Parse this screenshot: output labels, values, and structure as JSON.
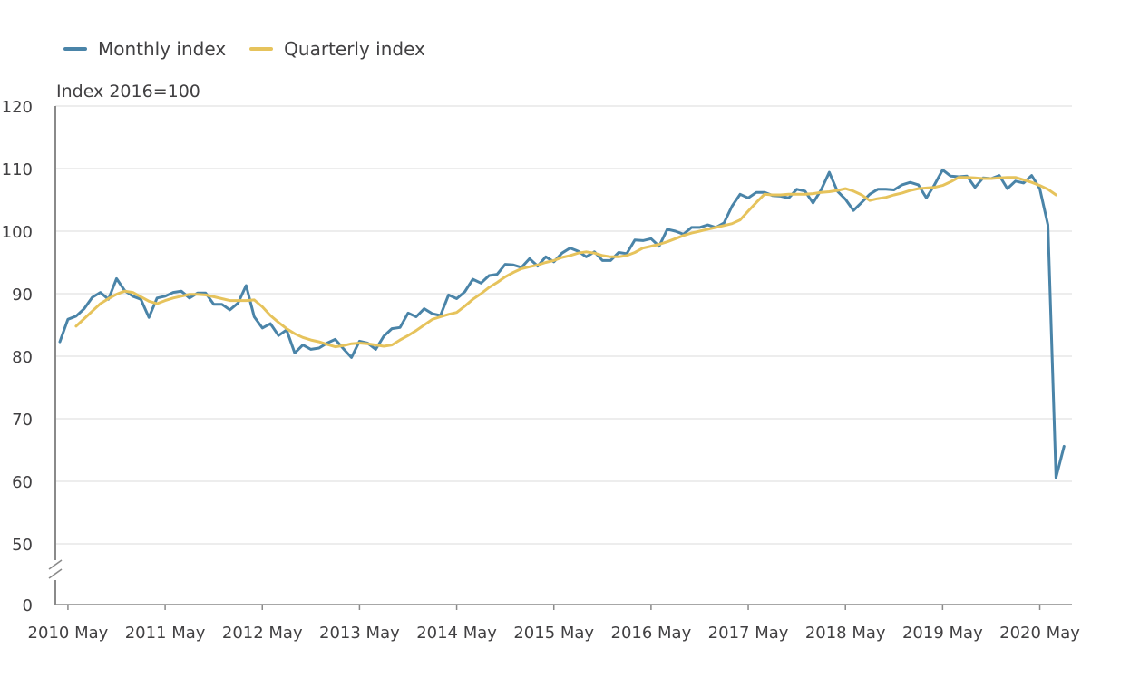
{
  "legend": {
    "monthly_label": "Monthly index",
    "quarterly_label": "Quarterly index"
  },
  "colors": {
    "monthly": "#4a84a8",
    "quarterly": "#e6c35c",
    "grid": "#e2e2e2",
    "axis": "#8a8a8a"
  },
  "chart_data": {
    "type": "line",
    "title": "",
    "ylabel": "Index 2016=100",
    "xlabel": "",
    "ylim": [
      50,
      120
    ],
    "y_ticks": [
      120,
      110,
      100,
      90,
      80,
      70,
      60,
      50,
      0
    ],
    "axis_break": "between 50 and 0",
    "grid": true,
    "legend_position": "top-left",
    "x_ticks": [
      "2010 May",
      "2011 May",
      "2012 May",
      "2013 May",
      "2014 May",
      "2015 May",
      "2016 May",
      "2017 May",
      "2018 May",
      "2019 May",
      "2020 May"
    ],
    "x_start": "2010-04",
    "series": [
      {
        "name": "Monthly index",
        "start": "2010-04",
        "values": [
          82.3,
          85.9,
          86.4,
          87.6,
          89.4,
          90.2,
          89.1,
          92.4,
          90.5,
          89.6,
          89.1,
          86.2,
          89.3,
          89.6,
          90.2,
          90.4,
          89.3,
          90.1,
          90.1,
          88.3,
          88.3,
          87.4,
          88.5,
          91.3,
          86.3,
          84.5,
          85.2,
          83.3,
          84.2,
          80.5,
          81.8,
          81.1,
          81.3,
          82.1,
          82.7,
          81.2,
          79.8,
          82.4,
          82.1,
          81.1,
          83.2,
          84.4,
          84.6,
          86.9,
          86.3,
          87.6,
          86.8,
          86.5,
          89.8,
          89.2,
          90.3,
          92.3,
          91.7,
          92.9,
          93.1,
          94.7,
          94.6,
          94.2,
          95.6,
          94.4,
          95.9,
          95.1,
          96.5,
          97.3,
          96.8,
          95.9,
          96.7,
          95.3,
          95.3,
          96.6,
          96.4,
          98.6,
          98.5,
          98.8,
          97.6,
          100.3,
          100.0,
          99.5,
          100.6,
          100.6,
          101.0,
          100.6,
          101.3,
          104.0,
          105.9,
          105.3,
          106.2,
          106.2,
          105.7,
          105.6,
          105.3,
          106.7,
          106.4,
          104.5,
          106.6,
          109.4,
          106.4,
          105.1,
          103.3,
          104.6,
          105.9,
          106.7,
          106.7,
          106.6,
          107.4,
          107.8,
          107.4,
          105.3,
          107.4,
          109.8,
          108.8,
          108.7,
          108.8,
          107.0,
          108.5,
          108.4,
          108.9,
          106.8,
          108.0,
          107.7,
          108.9,
          106.8,
          101.0,
          60.6,
          65.6
        ]
      },
      {
        "name": "Quarterly index",
        "start": "2010-06",
        "values": [
          84.8,
          86.0,
          87.2,
          88.4,
          89.2,
          89.9,
          90.4,
          90.2,
          89.5,
          88.8,
          88.4,
          88.9,
          89.3,
          89.6,
          89.9,
          89.9,
          89.8,
          89.5,
          89.2,
          88.9,
          88.9,
          88.9,
          89.0,
          87.9,
          86.5,
          85.4,
          84.4,
          83.6,
          83.0,
          82.6,
          82.3,
          81.9,
          81.5,
          81.7,
          82.0,
          82.1,
          82.0,
          81.8,
          81.6,
          81.8,
          82.6,
          83.3,
          84.1,
          85.0,
          85.9,
          86.3,
          86.7,
          87.0,
          88.0,
          89.1,
          90.0,
          91.0,
          91.8,
          92.7,
          93.4,
          94.0,
          94.3,
          94.6,
          95.0,
          95.3,
          95.8,
          96.1,
          96.5,
          96.7,
          96.5,
          96.1,
          95.9,
          95.9,
          96.1,
          96.6,
          97.3,
          97.6,
          97.9,
          98.3,
          98.8,
          99.3,
          99.7,
          100.0,
          100.3,
          100.6,
          100.9,
          101.2,
          101.8,
          103.2,
          104.6,
          105.9,
          105.8,
          105.8,
          105.9,
          105.9,
          105.9,
          106.0,
          106.2,
          106.3,
          106.5,
          106.8,
          106.4,
          105.8,
          104.9,
          105.2,
          105.4,
          105.8,
          106.1,
          106.5,
          106.8,
          106.9,
          107.0,
          107.3,
          107.9,
          108.6,
          108.6,
          108.5,
          108.4,
          108.4,
          108.5,
          108.6,
          108.6,
          108.2,
          107.8,
          107.3,
          106.7,
          105.8
        ]
      }
    ]
  }
}
